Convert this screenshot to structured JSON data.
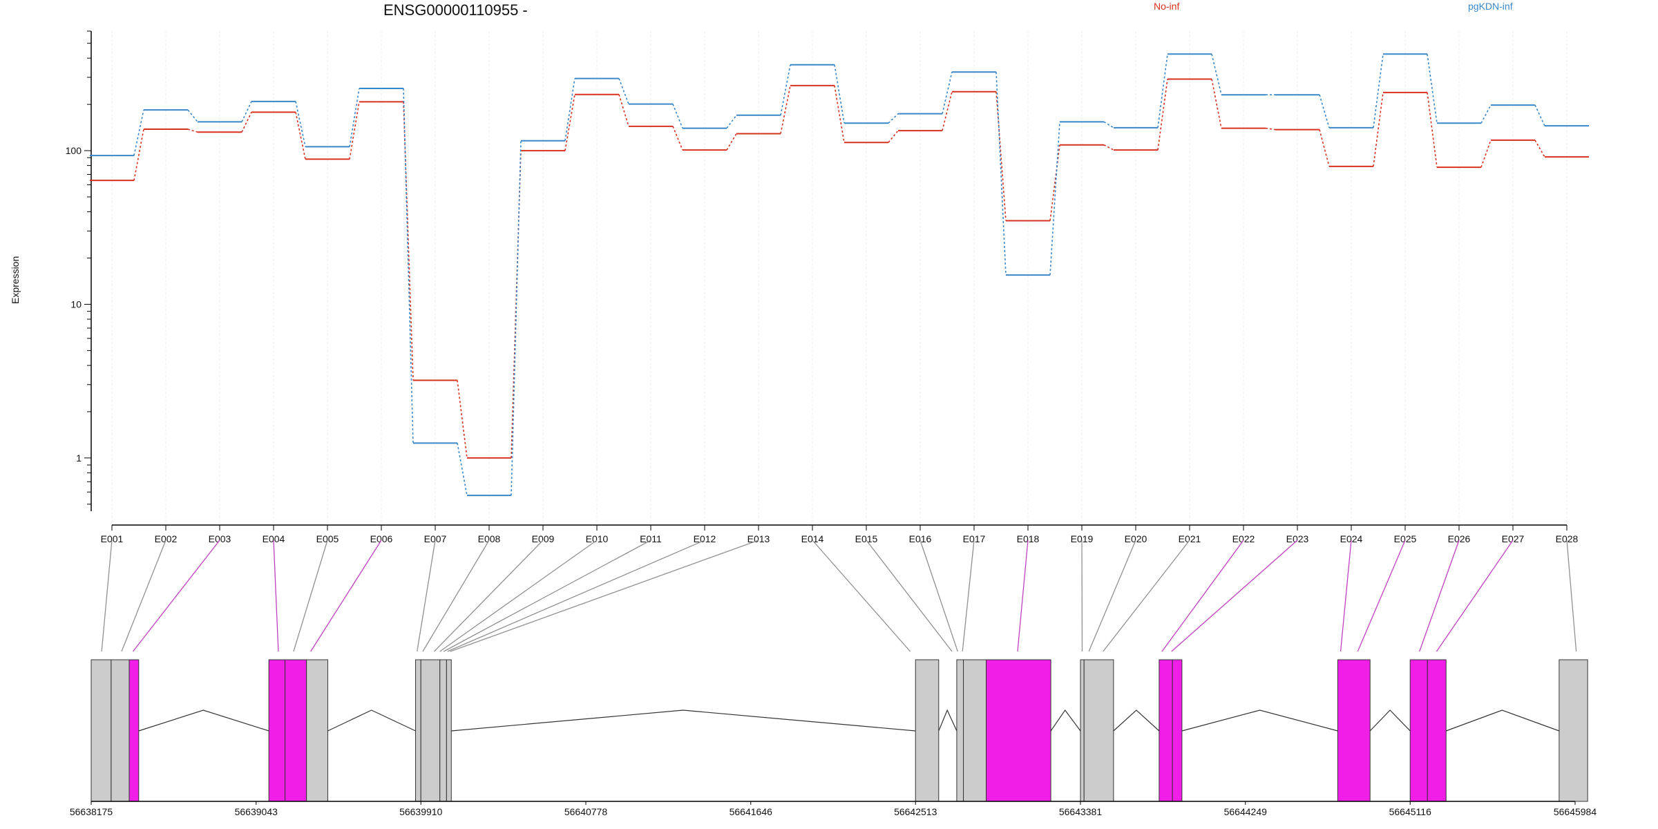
{
  "title": "ENSG00000110955 -",
  "ylabel": "Expression",
  "legend": [
    {
      "label": "No-inf",
      "color": "#d7301f"
    },
    {
      "label": "pgKDN-inf",
      "color": "#3a87c8"
    }
  ],
  "chart_data": {
    "type": "line",
    "title": "ENSG00000110955 -",
    "ylabel": "Expression",
    "yscale": "log",
    "ylim": [
      0.45,
      600
    ],
    "ytick_labels": [
      "1",
      "10",
      "100"
    ],
    "categories": [
      "E001",
      "E002",
      "E003",
      "E004",
      "E005",
      "E006",
      "E007",
      "E008",
      "E009",
      "E010",
      "E011",
      "E012",
      "E013",
      "E014",
      "E015",
      "E016",
      "E017",
      "E018",
      "E019",
      "E020",
      "E021",
      "E022",
      "E023",
      "E024",
      "E025",
      "E026",
      "E027",
      "E028"
    ],
    "series": [
      {
        "name": "No-inf",
        "color": "#d7301f",
        "values": [
          64,
          138,
          132,
          178,
          88,
          208,
          3.2,
          1.0,
          100,
          232,
          144,
          101,
          129,
          265,
          113,
          135,
          242,
          35,
          109,
          101,
          292,
          140,
          137,
          79,
          239,
          78,
          117,
          91
        ]
      },
      {
        "name": "pgKDN-inf",
        "color": "#3a87c8",
        "values": [
          93,
          184,
          154,
          209,
          106,
          254,
          1.25,
          0.57,
          116,
          295,
          201,
          140,
          170,
          362,
          151,
          174,
          325,
          15.5,
          154,
          141,
          425,
          231,
          231,
          141,
          425,
          151,
          198,
          145
        ]
      }
    ],
    "gene_model": {
      "coordinate_ticks": [
        "56638175",
        "56639043",
        "56639910",
        "56640778",
        "56641646",
        "56642513",
        "56643381",
        "56644249",
        "56645116",
        "56645984"
      ],
      "exon_blocks": [
        {
          "start": 56638175,
          "end": 56638280,
          "color": "#cccccc"
        },
        {
          "start": 56638280,
          "end": 56638375,
          "color": "#cccccc"
        },
        {
          "start": 56638375,
          "end": 56638425,
          "color": "#f01ee6"
        },
        {
          "start": 56639110,
          "end": 56639195,
          "color": "#f01ee6"
        },
        {
          "start": 56639195,
          "end": 56639308,
          "color": "#f01ee6"
        },
        {
          "start": 56639308,
          "end": 56639420,
          "color": "#cccccc"
        },
        {
          "start": 56639882,
          "end": 56639910,
          "color": "#cccccc"
        },
        {
          "start": 56639910,
          "end": 56640010,
          "color": "#cccccc"
        },
        {
          "start": 56640010,
          "end": 56640045,
          "color": "#cccccc"
        },
        {
          "start": 56640045,
          "end": 56640070,
          "color": "#cccccc"
        },
        {
          "start": 56642513,
          "end": 56642635,
          "color": "#cccccc"
        },
        {
          "start": 56642730,
          "end": 56642765,
          "color": "#cccccc"
        },
        {
          "start": 56642765,
          "end": 56642885,
          "color": "#cccccc"
        },
        {
          "start": 56642885,
          "end": 56643225,
          "color": "#f01ee6"
        },
        {
          "start": 56643381,
          "end": 56643400,
          "color": "#cccccc"
        },
        {
          "start": 56643400,
          "end": 56643555,
          "color": "#cccccc"
        },
        {
          "start": 56643795,
          "end": 56643865,
          "color": "#f01ee6"
        },
        {
          "start": 56643865,
          "end": 56643915,
          "color": "#f01ee6"
        },
        {
          "start": 56644735,
          "end": 56644905,
          "color": "#f01ee6"
        },
        {
          "start": 56645116,
          "end": 56645207,
          "color": "#f01ee6"
        },
        {
          "start": 56645207,
          "end": 56645305,
          "color": "#f01ee6"
        },
        {
          "start": 56645900,
          "end": 56646050,
          "color": "#cccccc"
        }
      ],
      "introns": [
        {
          "start": 56638425,
          "end": 56639110,
          "peak": 56638765
        },
        {
          "start": 56639420,
          "end": 56639882,
          "peak": 56639650
        },
        {
          "start": 56640070,
          "end": 56642513,
          "peak": 56641290
        },
        {
          "start": 56642635,
          "end": 56642730,
          "peak": 56642680
        },
        {
          "start": 56643225,
          "end": 56643381,
          "peak": 56643300
        },
        {
          "start": 56643555,
          "end": 56643795,
          "peak": 56643675
        },
        {
          "start": 56643915,
          "end": 56644735,
          "peak": 56644325
        },
        {
          "start": 56644905,
          "end": 56645116,
          "peak": 56645010
        },
        {
          "start": 56645305,
          "end": 56645900,
          "peak": 56645600
        }
      ],
      "bin_positions": [
        56638230,
        56638335,
        56638395,
        56639160,
        56639240,
        56639330,
        56639890,
        56639920,
        56639980,
        56640010,
        56640030,
        56640050,
        56640065,
        56642485,
        56642705,
        56642735,
        56642760,
        56643050,
        56643390,
        56643425,
        56643500,
        56643810,
        56643860,
        56644750,
        56644840,
        56645165,
        56645255,
        56645990
      ],
      "bin_highlight": [
        false,
        false,
        true,
        true,
        false,
        true,
        false,
        false,
        false,
        false,
        false,
        false,
        false,
        false,
        false,
        false,
        false,
        true,
        false,
        false,
        false,
        true,
        true,
        true,
        true,
        true,
        true,
        false
      ]
    }
  }
}
